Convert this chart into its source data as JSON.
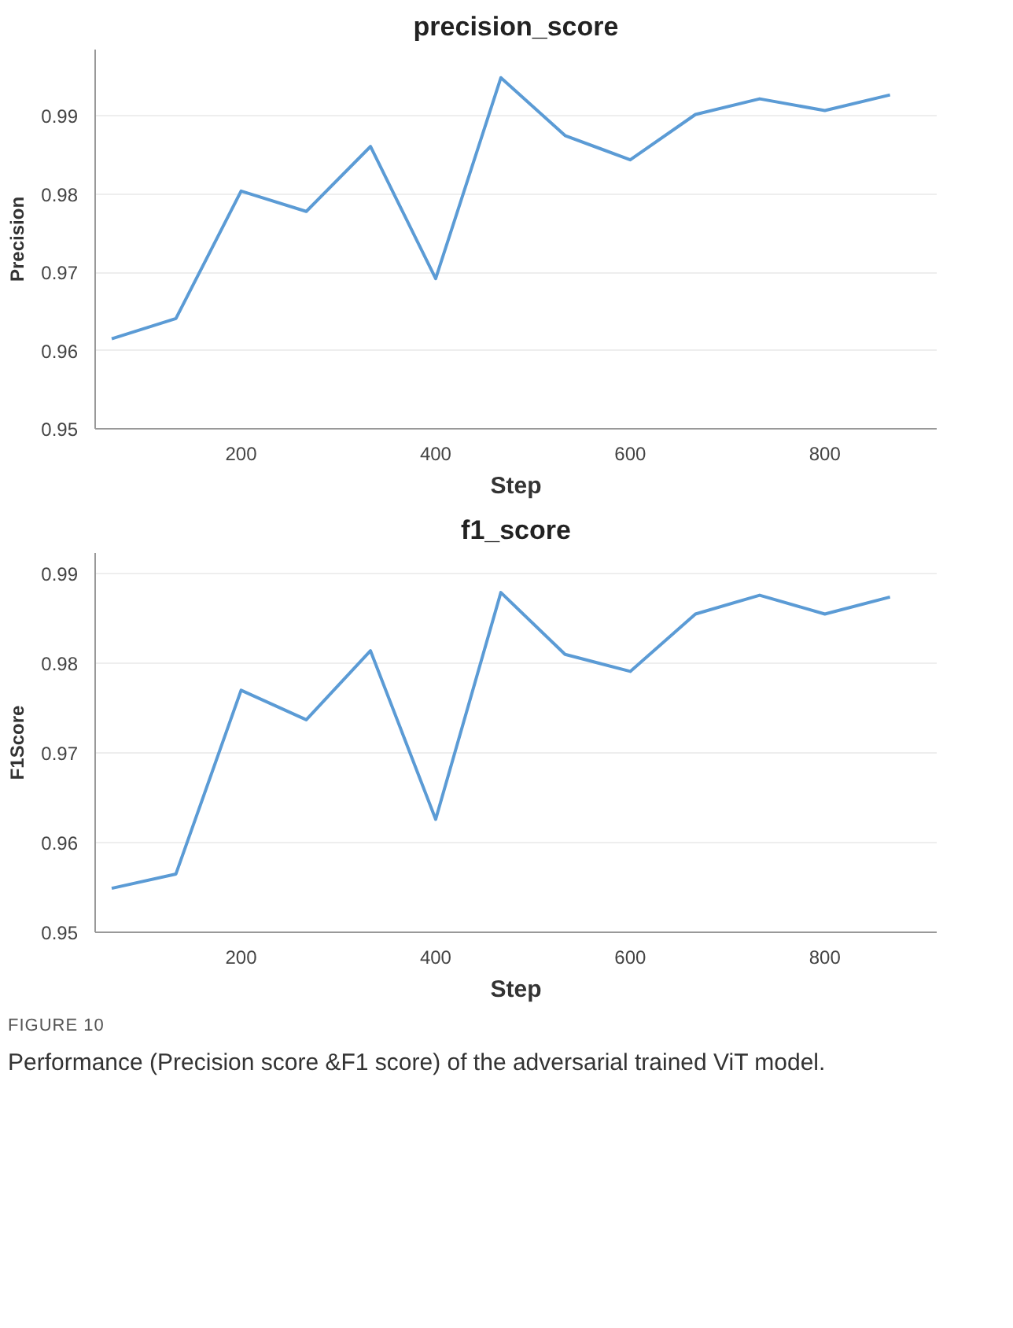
{
  "chart_data": [
    {
      "type": "line",
      "title": "precision_score",
      "xlabel": "Step",
      "ylabel": "Precision",
      "x": [
        67,
        133,
        200,
        267,
        333,
        400,
        467,
        533,
        600,
        667,
        733,
        800,
        867
      ],
      "series": [
        {
          "color": "#5b9bd5",
          "values": [
            0.9615,
            0.9641,
            0.9804,
            0.9778,
            0.9861,
            0.9692,
            0.9949,
            0.9875,
            0.9844,
            0.9902,
            0.9922,
            0.9907,
            0.9927
          ]
        }
      ],
      "xlim": [
        50,
        915
      ],
      "ylim": [
        0.95,
        0.9985
      ],
      "xticks": [
        200,
        400,
        600,
        800
      ],
      "yticks": [
        {
          "value": 0.95,
          "label": "0.95"
        },
        {
          "value": 0.96,
          "label": "0.96"
        },
        {
          "value": 0.97,
          "label": "0.97"
        },
        {
          "value": 0.98,
          "label": "0.98"
        },
        {
          "value": 0.99,
          "label": "0.99"
        }
      ],
      "grid": "y"
    },
    {
      "type": "line",
      "title": "f1_score",
      "xlabel": "Step",
      "ylabel": "F1Score",
      "x": [
        67,
        133,
        200,
        267,
        333,
        400,
        467,
        533,
        600,
        667,
        733,
        800,
        867
      ],
      "series": [
        {
          "color": "#5b9bd5",
          "values": [
            0.9549,
            0.9565,
            0.977,
            0.9737,
            0.9814,
            0.9626,
            0.9879,
            0.981,
            0.9791,
            0.9855,
            0.9876,
            0.9855,
            0.9874
          ]
        }
      ],
      "xlim": [
        50,
        915
      ],
      "ylim": [
        0.95,
        0.9923
      ],
      "xticks": [
        200,
        400,
        600,
        800
      ],
      "yticks": [
        {
          "value": 0.95,
          "label": "0.95"
        },
        {
          "value": 0.96,
          "label": "0.96"
        },
        {
          "value": 0.97,
          "label": "0.97"
        },
        {
          "value": 0.98,
          "label": "0.98"
        },
        {
          "value": 0.99,
          "label": "0.99"
        }
      ],
      "grid": "y",
      "annotations": [
        "FIGURE 10",
        "Performance (Precision score &F1 score) of the adversarial trained ViT model."
      ]
    }
  ]
}
